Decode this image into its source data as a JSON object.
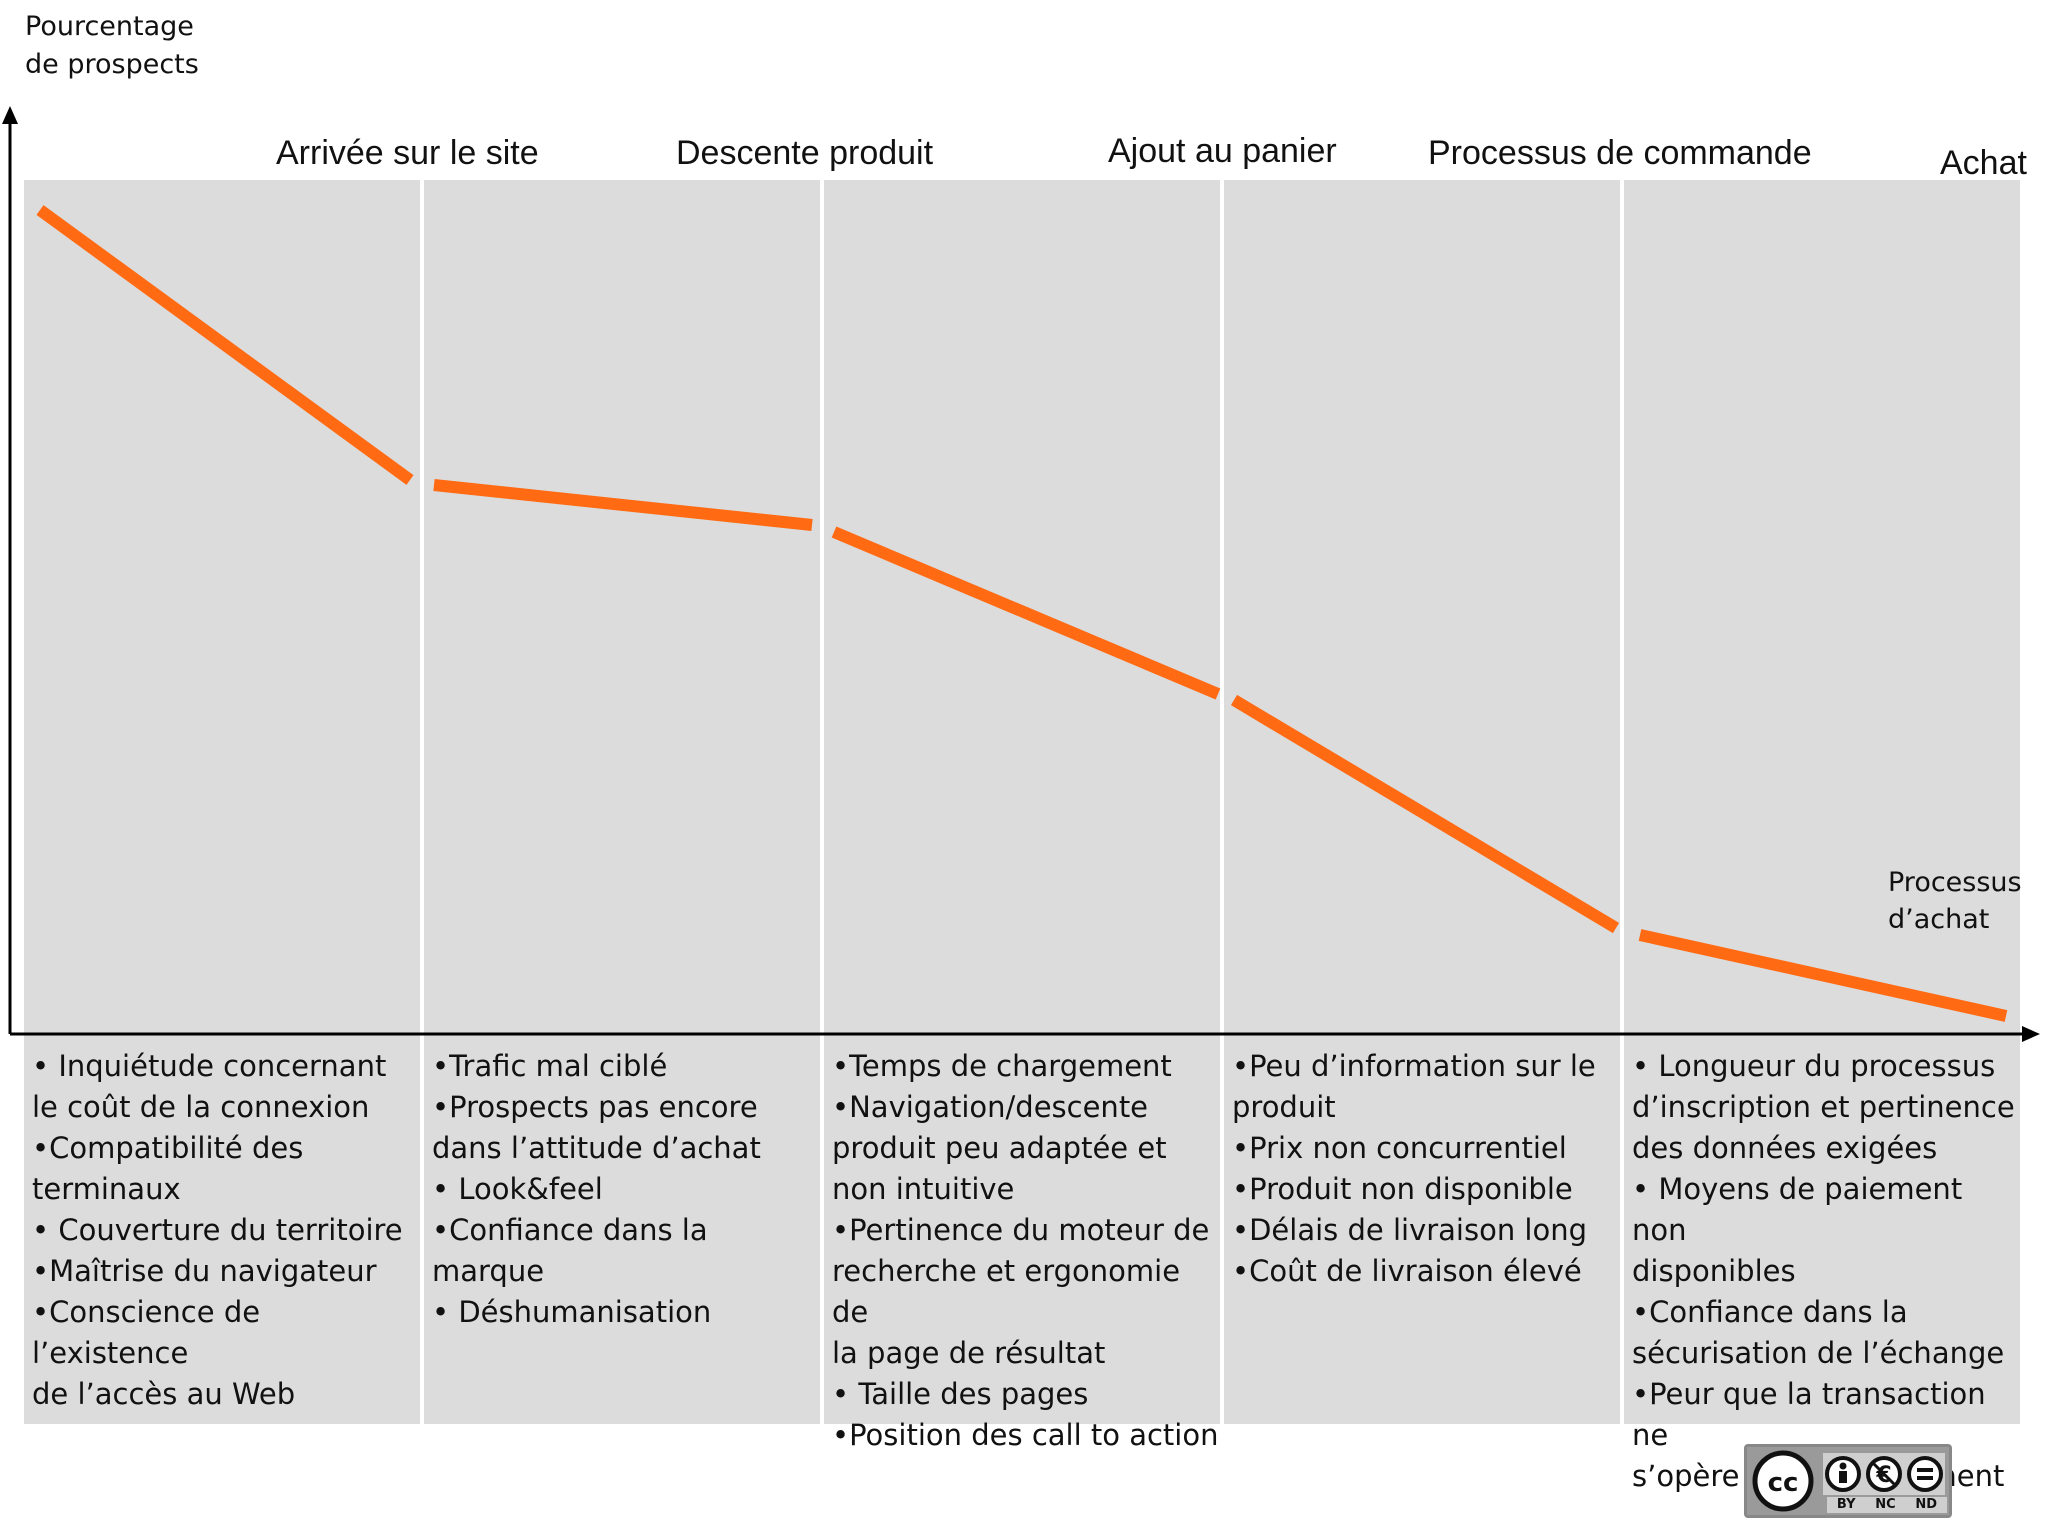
{
  "y_axis_label": [
    "Pourcentage",
    "de prospects"
  ],
  "stages": [
    "Arrivée sur le site",
    "Descente produit",
    "Ajout au panier",
    "Processus de commande",
    "Achat"
  ],
  "end_label": [
    "Processus",
    "d’achat"
  ],
  "columns": [
    {
      "lines": [
        "• Inquiétude concernant",
        "le coût de la connexion",
        "•Compatibilité des",
        "terminaux",
        "• Couverture du territoire",
        "•Maîtrise du navigateur",
        "•Conscience de l’existence",
        "de l’accès au Web"
      ]
    },
    {
      "lines": [
        "•Trafic mal ciblé",
        "•Prospects pas encore",
        "dans l’attitude d’achat",
        "• Look&feel",
        "•Confiance dans la marque",
        "• Déshumanisation"
      ]
    },
    {
      "lines": [
        "•Temps de chargement",
        "•Navigation/descente",
        "produit peu adaptée et",
        "non intuitive",
        "•Pertinence du moteur de",
        "recherche et ergonomie de",
        "la page de résultat",
        "• Taille des pages",
        "•Position des call to action"
      ]
    },
    {
      "lines": [
        "•Peu d’information sur le",
        "produit",
        "•Prix non concurrentiel",
        "•Produit non disponible",
        "•Délais de livraison long",
        "•Coût de livraison élevé"
      ]
    },
    {
      "lines": [
        "• Longueur du processus",
        "d’inscription et pertinence",
        "des données exigées",
        "• Moyens de paiement non",
        "disponibles",
        "•Confiance dans la",
        "sécurisation de l’échange",
        "•Peur que la transaction ne",
        "s’opère pas correctement"
      ]
    }
  ],
  "license_badge": {
    "cc": "cc",
    "terms": [
      "BY",
      "NC",
      "ND"
    ]
  },
  "colors": {
    "panel": "#dcdcdc",
    "line": "#ff6a13",
    "axis": "#000000",
    "background": "#ffffff"
  }
}
